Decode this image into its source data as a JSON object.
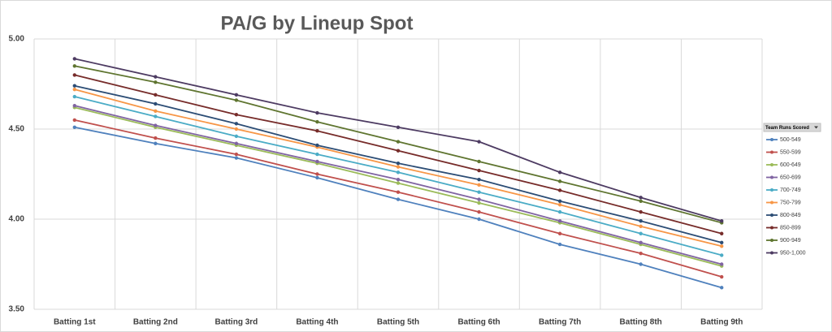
{
  "chart_data": {
    "type": "line",
    "title": "PA/G by Lineup Spot",
    "legend_title": "Team Runs Scored",
    "legend": "right",
    "grid": true,
    "categories": [
      "Batting 1st",
      "Batting 2nd",
      "Batting 3rd",
      "Batting 4th",
      "Batting 5th",
      "Batting 6th",
      "Batting 7th",
      "Batting 8th",
      "Batting 9th"
    ],
    "ylim": [
      3.5,
      5.0
    ],
    "yticks": [
      {
        "value": 3.5,
        "label": "3.50"
      },
      {
        "value": 4.0,
        "label": "4.00"
      },
      {
        "value": 4.5,
        "label": "4.50"
      },
      {
        "value": 5.0,
        "label": "5.00"
      }
    ],
    "series": [
      {
        "name": "500-549",
        "color": "#4f81bd",
        "values": [
          4.51,
          4.42,
          4.34,
          4.23,
          4.11,
          4.0,
          3.86,
          3.75,
          3.62
        ]
      },
      {
        "name": "550-599",
        "color": "#c0504d",
        "values": [
          4.55,
          4.45,
          4.36,
          4.25,
          4.15,
          4.04,
          3.92,
          3.81,
          3.68
        ]
      },
      {
        "name": "600-649",
        "color": "#9bbb59",
        "values": [
          4.62,
          4.51,
          4.41,
          4.31,
          4.2,
          4.09,
          3.98,
          3.86,
          3.74
        ]
      },
      {
        "name": "650-699",
        "color": "#8064a2",
        "values": [
          4.63,
          4.52,
          4.42,
          4.32,
          4.22,
          4.11,
          3.99,
          3.87,
          3.75
        ]
      },
      {
        "name": "700-749",
        "color": "#4bacc6",
        "values": [
          4.68,
          4.57,
          4.46,
          4.36,
          4.26,
          4.15,
          4.04,
          3.92,
          3.8
        ]
      },
      {
        "name": "750-799",
        "color": "#f79646",
        "values": [
          4.72,
          4.6,
          4.5,
          4.4,
          4.29,
          4.19,
          4.08,
          3.96,
          3.85
        ]
      },
      {
        "name": "800-849",
        "color": "#2c4d75",
        "values": [
          4.74,
          4.64,
          4.53,
          4.41,
          4.31,
          4.22,
          4.1,
          3.99,
          3.87
        ]
      },
      {
        "name": "850-899",
        "color": "#772c2a",
        "values": [
          4.8,
          4.69,
          4.58,
          4.49,
          4.38,
          4.27,
          4.16,
          4.04,
          3.92
        ]
      },
      {
        "name": "900-949",
        "color": "#5f7530",
        "values": [
          4.85,
          4.76,
          4.66,
          4.54,
          4.43,
          4.32,
          4.21,
          4.1,
          3.98
        ]
      },
      {
        "name": "950-1,000",
        "color": "#4d3b62",
        "values": [
          4.89,
          4.79,
          4.69,
          4.59,
          4.51,
          4.43,
          4.26,
          4.12,
          3.99
        ]
      }
    ]
  }
}
